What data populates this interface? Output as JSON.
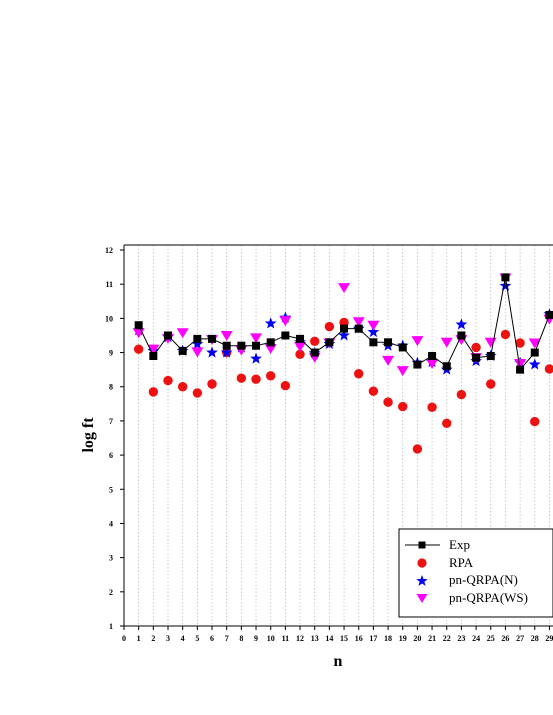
{
  "chart_data": {
    "type": "scatter",
    "xlabel": "n",
    "ylabel": "log ft",
    "xlim": [
      0,
      29
    ],
    "ylim": [
      1,
      12
    ],
    "x_ticks": [
      "0",
      "1",
      "2",
      "3",
      "4",
      "5",
      "6",
      "7",
      "8",
      "9",
      "10",
      "11",
      "12",
      "13",
      "14",
      "15",
      "16",
      "17",
      "18",
      "19",
      "20",
      "21",
      "22",
      "23",
      "24",
      "25",
      "26",
      "27",
      "28",
      "29"
    ],
    "y_ticks": [
      "1",
      "2",
      "3",
      "4",
      "5",
      "6",
      "7",
      "8",
      "9",
      "10",
      "11",
      "12"
    ],
    "grid": "vertical dotted",
    "legend_position": "bottom-right",
    "x": [
      1,
      2,
      3,
      4,
      5,
      6,
      7,
      8,
      9,
      10,
      11,
      12,
      13,
      14,
      15,
      16,
      17,
      18,
      19,
      20,
      21,
      22,
      23,
      24,
      25,
      26,
      27,
      28,
      29
    ],
    "series": [
      {
        "name": "Exp",
        "marker": "square-line",
        "color": "#000000",
        "values": [
          9.8,
          8.9,
          9.5,
          9.05,
          9.4,
          9.4,
          9.2,
          9.2,
          9.2,
          9.3,
          9.5,
          9.4,
          9.0,
          9.3,
          9.7,
          9.7,
          9.3,
          9.3,
          9.15,
          8.65,
          8.9,
          8.6,
          9.5,
          8.85,
          8.9,
          11.2,
          8.5,
          9.0,
          10.1
        ]
      },
      {
        "name": "RPA",
        "marker": "circle",
        "color": "#ee1111",
        "values": [
          9.1,
          7.85,
          8.18,
          8.0,
          7.82,
          8.08,
          9.0,
          8.25,
          8.22,
          8.32,
          8.03,
          8.95,
          9.33,
          9.76,
          9.88,
          8.38,
          7.87,
          7.55,
          7.42,
          6.18,
          7.4,
          6.93,
          7.77,
          9.15,
          8.08,
          9.53,
          9.28,
          6.98,
          8.52
        ]
      },
      {
        "name": "pn-QRPA(N)",
        "marker": "star",
        "color": "#0000ee",
        "values": [
          9.65,
          9.05,
          9.45,
          9.05,
          9.25,
          9.0,
          9.0,
          9.15,
          8.82,
          9.85,
          10.02,
          9.3,
          8.98,
          9.25,
          9.5,
          9.7,
          9.6,
          9.2,
          9.2,
          8.7,
          8.72,
          8.5,
          9.82,
          8.75,
          8.9,
          10.95,
          8.7,
          8.65,
          10.12
        ]
      },
      {
        "name": "pn-QRPA(WS)",
        "marker": "triangle-down",
        "color": "#ff00ff",
        "values": [
          9.58,
          9.1,
          9.42,
          9.58,
          9.02,
          9.38,
          9.5,
          9.07,
          9.43,
          9.12,
          9.93,
          9.18,
          8.86,
          9.28,
          10.9,
          9.9,
          9.8,
          8.77,
          8.47,
          9.35,
          8.68,
          9.3,
          9.38,
          8.85,
          9.3,
          11.18,
          8.68,
          9.28,
          9.98
        ]
      }
    ]
  }
}
